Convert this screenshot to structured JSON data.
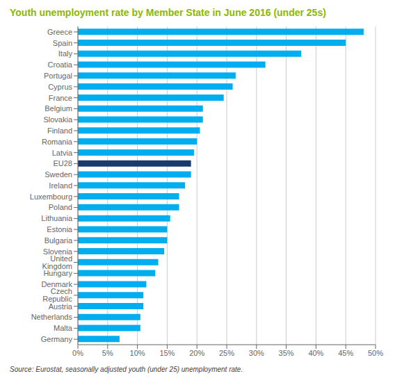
{
  "chart_data": {
    "type": "bar",
    "orientation": "horizontal",
    "title": "Youth unemployment rate by Member State in June 2016 (under 25s)",
    "annotations": [
      "Source: Eurostat, seasonally adjusted youth (under 25) unemployment rate."
    ],
    "categories": [
      "Greece",
      "Spain",
      "Italy",
      "Croatia",
      "Portugal",
      "Cyprus",
      "France",
      "Belgium",
      "Slovakia",
      "Finland",
      "Romania",
      "Latvia",
      "EU28",
      "Sweden",
      "Ireland",
      "Luxembourg",
      "Poland",
      "Lithuania",
      "Estonia",
      "Bulgaria",
      "Slovenia",
      "United Kingdom",
      "Hungary",
      "Denmark",
      "Czech Republic",
      "Austria",
      "Netherlands",
      "Malta",
      "Germany"
    ],
    "values": [
      48.0,
      45.0,
      37.5,
      31.5,
      26.5,
      26.0,
      24.5,
      21.0,
      21.0,
      20.5,
      20.0,
      19.5,
      19.0,
      19.0,
      18.0,
      17.0,
      17.0,
      15.5,
      15.0,
      15.0,
      14.5,
      13.5,
      13.0,
      11.5,
      11.0,
      11.0,
      10.5,
      10.5,
      7.0
    ],
    "colors": [
      "#00ADEF",
      "#00ADEF",
      "#00ADEF",
      "#00ADEF",
      "#00ADEF",
      "#00ADEF",
      "#00ADEF",
      "#00ADEF",
      "#00ADEF",
      "#00ADEF",
      "#00ADEF",
      "#00ADEF",
      "#1A3A6B",
      "#00ADEF",
      "#00ADEF",
      "#00ADEF",
      "#00ADEF",
      "#00ADEF",
      "#00ADEF",
      "#00ADEF",
      "#00ADEF",
      "#00ADEF",
      "#00ADEF",
      "#00ADEF",
      "#00ADEF",
      "#00ADEF",
      "#00ADEF",
      "#00ADEF",
      "#00ADEF"
    ],
    "xlim": [
      0,
      50
    ],
    "xticks": [
      {
        "value": 0,
        "label": "0%"
      },
      {
        "value": 5,
        "label": "5%"
      },
      {
        "value": 10,
        "label": "10%"
      },
      {
        "value": 15,
        "label": "15%"
      },
      {
        "value": 20,
        "label": "20%"
      },
      {
        "value": 25,
        "label": "25%"
      },
      {
        "value": 30,
        "label": "30%"
      },
      {
        "value": 35,
        "label": "35%"
      },
      {
        "value": 40,
        "label": "40%"
      },
      {
        "value": 45,
        "label": "45%"
      },
      {
        "value": 50,
        "label": "50%"
      }
    ],
    "grid": true,
    "title_color": "#8CB800"
  }
}
